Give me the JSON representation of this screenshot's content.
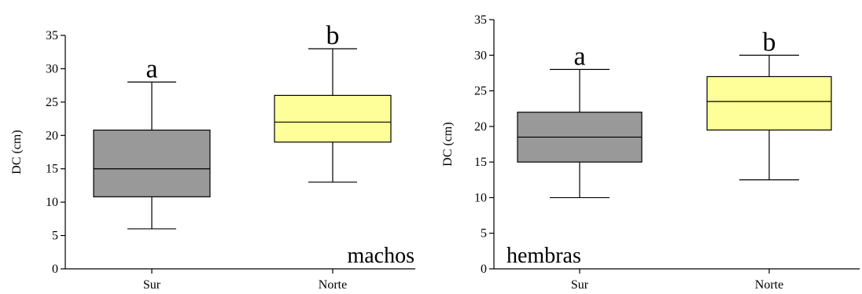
{
  "chart_data": [
    {
      "type": "box",
      "ylabel": "DC (cm)",
      "ylim": [
        0,
        35
      ],
      "yticks": [
        0,
        5,
        10,
        15,
        20,
        25,
        30,
        35
      ],
      "categories": [
        "Sur",
        "Norte"
      ],
      "annotation": "machos",
      "boxes": [
        {
          "category": "Sur",
          "min": 6,
          "q1": 10.8,
          "median": 15,
          "q3": 20.8,
          "max": 28,
          "color": "#999999",
          "letter": "a"
        },
        {
          "category": "Norte",
          "min": 13,
          "q1": 19,
          "median": 22,
          "q3": 26,
          "max": 33,
          "color": "#ffff99",
          "letter": "b"
        }
      ]
    },
    {
      "type": "box",
      "ylabel": "DC (cm)",
      "ylim": [
        0,
        35
      ],
      "yticks": [
        0,
        5,
        10,
        15,
        20,
        25,
        30,
        35
      ],
      "categories": [
        "Sur",
        "Norte"
      ],
      "annotation": "hembras",
      "boxes": [
        {
          "category": "Sur",
          "min": 10,
          "q1": 15,
          "median": 18.5,
          "q3": 22,
          "max": 28,
          "color": "#999999",
          "letter": "a"
        },
        {
          "category": "Norte",
          "min": 12.5,
          "q1": 19.5,
          "median": 23.5,
          "q3": 27,
          "max": 30,
          "color": "#ffff99",
          "letter": "b"
        }
      ]
    }
  ]
}
